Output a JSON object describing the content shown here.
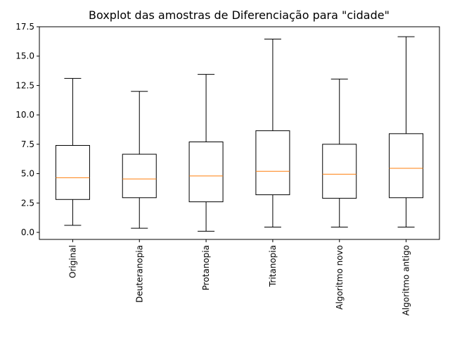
{
  "chart_data": {
    "type": "boxplot",
    "title": "Boxplot das amostras de Diferenciação para \"cidade\"",
    "xlabel": "",
    "ylabel": "",
    "ylim": [
      -0.6,
      17.5
    ],
    "yticks": [
      0.0,
      2.5,
      5.0,
      7.5,
      10.0,
      12.5,
      15.0,
      17.5
    ],
    "ytick_labels": [
      "0.0",
      "2.5",
      "5.0",
      "7.5",
      "10.0",
      "12.5",
      "15.0",
      "17.5"
    ],
    "categories": [
      "Original",
      "Deuteranopia",
      "Protanopia",
      "Tritanopia",
      "Algoritmo novo",
      "Algoritmo antigo"
    ],
    "boxes": [
      {
        "whislo": 0.6,
        "q1": 2.8,
        "med": 4.65,
        "q3": 7.4,
        "whishi": 13.1
      },
      {
        "whislo": 0.35,
        "q1": 2.95,
        "med": 4.55,
        "q3": 6.65,
        "whishi": 12.0
      },
      {
        "whislo": 0.1,
        "q1": 2.6,
        "med": 4.8,
        "q3": 7.7,
        "whishi": 13.45
      },
      {
        "whislo": 0.45,
        "q1": 3.2,
        "med": 5.2,
        "q3": 8.65,
        "whishi": 16.45
      },
      {
        "whislo": 0.45,
        "q1": 2.9,
        "med": 4.95,
        "q3": 7.5,
        "whishi": 13.05
      },
      {
        "whislo": 0.45,
        "q1": 2.95,
        "med": 5.45,
        "q3": 8.4,
        "whishi": 16.65
      }
    ],
    "grid": false,
    "colors": {
      "box": "#000000",
      "median": "#ff7f0e",
      "axes": "#000000"
    }
  }
}
